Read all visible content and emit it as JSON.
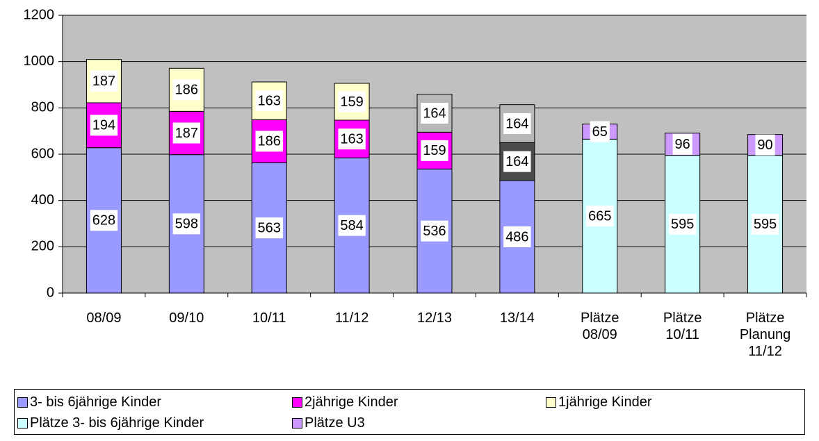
{
  "chart_data": {
    "type": "stacked_bar",
    "categories": [
      "08/09",
      "09/10",
      "10/11",
      "11/12",
      "12/13",
      "13/14",
      "Plätze 08/09",
      "Plätze 10/11",
      "Plätze Planung 11/12"
    ],
    "series": [
      {
        "name": "3- bis 6jährige Kinder",
        "color": "#9999ff",
        "values": [
          628,
          598,
          563,
          584,
          536,
          486,
          null,
          null,
          null
        ]
      },
      {
        "name": "2jährige Kinder",
        "color": "#ff00ff",
        "values": [
          194,
          187,
          186,
          163,
          159,
          null,
          null,
          null,
          null
        ]
      },
      {
        "color": "#4a4a4a",
        "values": [
          null,
          null,
          null,
          null,
          null,
          164,
          null,
          null,
          null
        ]
      },
      {
        "name": "1jährige Kinder",
        "color": "#ffffcc",
        "values": [
          187,
          186,
          163,
          159,
          null,
          null,
          null,
          null,
          null
        ]
      },
      {
        "color": "#b8b8b8",
        "values": [
          null,
          null,
          null,
          null,
          164,
          164,
          null,
          null,
          null
        ]
      },
      {
        "name": "Plätze 3- bis 6jährige Kinder",
        "color": "#ccffff",
        "values": [
          null,
          null,
          null,
          null,
          null,
          null,
          665,
          595,
          595
        ]
      },
      {
        "name": "Plätze U3",
        "color": "#cc99ff",
        "values": [
          null,
          null,
          null,
          null,
          null,
          null,
          65,
          96,
          90
        ]
      }
    ],
    "ylim": [
      0,
      1200
    ],
    "yticks": [
      0,
      200,
      400,
      600,
      800,
      1000,
      1200
    ],
    "grid": true,
    "legend": "bottom"
  }
}
